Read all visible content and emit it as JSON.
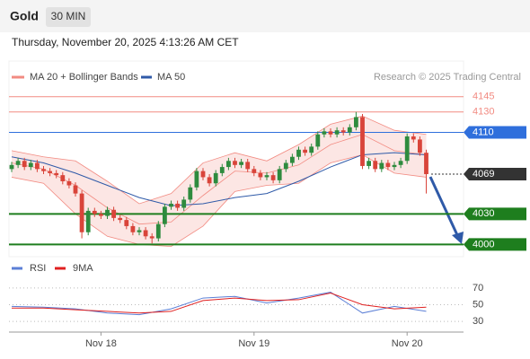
{
  "header": {
    "title": "Gold",
    "timeframe": "30 MIN",
    "timestamp": "Thursday, November 20, 2025 4:13:26 AM CET"
  },
  "chart_data": [
    {
      "type": "candlestick",
      "credit": "Research © 2025 Trading Central",
      "categories": [
        null,
        null,
        null,
        null,
        null,
        null,
        null,
        null,
        null,
        null,
        null,
        null,
        null,
        null,
        "Nov 18",
        null,
        null,
        null,
        null,
        null,
        null,
        null,
        null,
        null,
        null,
        null,
        null,
        null,
        null,
        null,
        null,
        null,
        null,
        null,
        null,
        null,
        null,
        null,
        "Nov 19",
        null,
        null,
        null,
        null,
        null,
        null,
        null,
        null,
        null,
        null,
        null,
        null,
        null,
        null,
        null,
        null,
        null,
        null,
        null,
        null,
        null,
        null,
        null,
        "Nov 20",
        null,
        null,
        null
      ],
      "open": [
        4074,
        4078,
        4082,
        4076,
        4080,
        4074,
        4072,
        4070,
        4068,
        4062,
        4058,
        4050,
        4012,
        4033,
        4030,
        4028,
        4034,
        4026,
        4024,
        4018,
        4012,
        4014,
        4008,
        4006,
        4020,
        4037,
        4040,
        4036,
        4044,
        4056,
        4072,
        4066,
        4060,
        4070,
        4076,
        4082,
        4078,
        4081,
        4074,
        4070,
        4066,
        4068,
        4063,
        4074,
        4080,
        4086,
        4093,
        4090,
        4096,
        4108,
        4111,
        4108,
        4112,
        4110,
        4115,
        4125,
        4077,
        4082,
        4074,
        4080,
        4076,
        4078,
        4082,
        4106,
        4103,
        4090
      ],
      "high": [
        4081,
        4085,
        4085,
        4083,
        4083,
        4077,
        4075,
        4073,
        4071,
        4065,
        4061,
        4053,
        4036,
        4036,
        4033,
        4037,
        4037,
        4029,
        4027,
        4021,
        4017,
        4017,
        4011,
        4023,
        4040,
        4043,
        4043,
        4047,
        4059,
        4075,
        4075,
        4069,
        4073,
        4079,
        4085,
        4085,
        4084,
        4084,
        4077,
        4073,
        4071,
        4071,
        4077,
        4083,
        4089,
        4096,
        4096,
        4099,
        4111,
        4114,
        4114,
        4115,
        4115,
        4118,
        4130,
        4128,
        4085,
        4085,
        4083,
        4083,
        4081,
        4085,
        4109,
        4109,
        4106,
        4093
      ],
      "low": [
        4071,
        4075,
        4073,
        4073,
        4071,
        4069,
        4067,
        4065,
        4059,
        4055,
        4047,
        4006,
        4009,
        4027,
        4025,
        4025,
        4023,
        4021,
        4015,
        4009,
        4009,
        4005,
        4001,
        4003,
        4017,
        4034,
        4033,
        4033,
        4041,
        4053,
        4063,
        4057,
        4057,
        4067,
        4073,
        4075,
        4075,
        4071,
        4067,
        4063,
        4063,
        4060,
        4060,
        4071,
        4077,
        4083,
        4087,
        4087,
        4093,
        4105,
        4105,
        4105,
        4107,
        4107,
        4112,
        4074,
        4074,
        4071,
        4071,
        4073,
        4073,
        4075,
        4079,
        4100,
        4087,
        4050
      ],
      "close": [
        4078,
        4082,
        4076,
        4080,
        4074,
        4072,
        4070,
        4068,
        4062,
        4058,
        4050,
        4012,
        4033,
        4030,
        4028,
        4034,
        4026,
        4024,
        4018,
        4012,
        4014,
        4008,
        4006,
        4020,
        4037,
        4040,
        4036,
        4044,
        4056,
        4072,
        4066,
        4060,
        4070,
        4076,
        4082,
        4078,
        4081,
        4074,
        4070,
        4066,
        4068,
        4063,
        4074,
        4080,
        4086,
        4093,
        4090,
        4096,
        4108,
        4111,
        4108,
        4112,
        4110,
        4115,
        4125,
        4077,
        4082,
        4074,
        4080,
        4076,
        4078,
        4082,
        4106,
        4103,
        4090,
        4069
      ],
      "up_color": "#2e8b3e",
      "down_color": "#d9443a",
      "ylim": [
        3988,
        4180
      ],
      "bands": {
        "name": "MA 20 + Bollinger Bands",
        "color": "#f28b82",
        "x": [
          0,
          5,
          10,
          15,
          20,
          25,
          30,
          35,
          40,
          45,
          50,
          55,
          60,
          65
        ],
        "middle": [
          4080,
          4074,
          4058,
          4036,
          4020,
          4022,
          4048,
          4072,
          4070,
          4078,
          4098,
          4108,
          4092,
          4088
        ],
        "upper": [
          4092,
          4086,
          4082,
          4062,
          4040,
          4050,
          4080,
          4090,
          4082,
          4098,
          4118,
          4126,
          4112,
          4108
        ],
        "lower": [
          4066,
          4060,
          4030,
          4008,
          4000,
          3998,
          4018,
          4052,
          4058,
          4060,
          4080,
          4088,
          4070,
          4066
        ]
      },
      "series": [
        {
          "name": "MA 50",
          "color": "#2f5aa8",
          "x": [
            0,
            5,
            10,
            15,
            20,
            25,
            30,
            35,
            40,
            45,
            50,
            55,
            60,
            65
          ],
          "values": [
            4086,
            4080,
            4070,
            4058,
            4046,
            4038,
            4040,
            4046,
            4050,
            4062,
            4076,
            4088,
            4090,
            4088
          ]
        }
      ],
      "levels": [
        {
          "value": 4145,
          "color": "#f28b82",
          "line": "thin",
          "box": false
        },
        {
          "value": 4130,
          "color": "#f28b82",
          "line": "thin",
          "box": false
        },
        {
          "value": 4110,
          "color": "#2f6fdc",
          "line": "thin",
          "box": true
        },
        {
          "value": 4069,
          "color": "#333333",
          "line": "dotted",
          "box": true
        },
        {
          "value": 4030,
          "color": "#1e7e1e",
          "line": "thick",
          "box": true
        },
        {
          "value": 4000,
          "color": "#1e7e1e",
          "line": "thick",
          "box": true
        }
      ]
    },
    {
      "type": "line",
      "ylim": [
        15,
        85
      ],
      "yticks": [
        30,
        50,
        70
      ],
      "grid": true,
      "series": [
        {
          "name": "RSI",
          "color": "#5b7fd6",
          "x": [
            0,
            5,
            10,
            15,
            20,
            25,
            30,
            35,
            40,
            45,
            50,
            55,
            60,
            65
          ],
          "values": [
            48,
            47,
            45,
            40,
            38,
            45,
            58,
            60,
            52,
            58,
            65,
            40,
            48,
            42
          ]
        },
        {
          "name": "9MA",
          "color": "#e02020",
          "x": [
            0,
            5,
            10,
            15,
            20,
            25,
            30,
            35,
            40,
            45,
            50,
            55,
            60,
            65
          ],
          "values": [
            46,
            46,
            44,
            42,
            40,
            42,
            55,
            58,
            55,
            56,
            64,
            50,
            45,
            47
          ]
        }
      ]
    }
  ]
}
